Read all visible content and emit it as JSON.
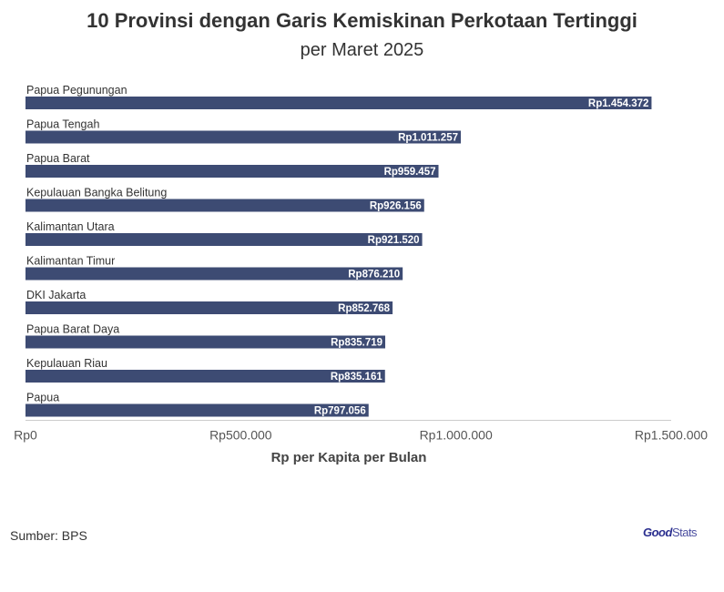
{
  "colors": {
    "bar": "#3d4b73",
    "label": "#ffffff",
    "text": "#333333",
    "axis": "#cccccc",
    "logo": "#2b2f8f"
  },
  "source": "Sumber: BPS",
  "logo": {
    "part1": "Good",
    "part2": "Stats"
  },
  "chart_data": {
    "type": "bar",
    "orientation": "horizontal",
    "title": "10 Provinsi dengan Garis Kemiskinan Perkotaan Tertinggi",
    "subtitle": "per Maret 2025",
    "xlabel": "Rp per Kapita per Bulan",
    "ylabel": "",
    "xlim": [
      0,
      1500000
    ],
    "xticks": [
      0,
      500000,
      1000000,
      1500000
    ],
    "xtick_labels": [
      "Rp0",
      "Rp500.000",
      "Rp1.000.000",
      "Rp1.500.000"
    ],
    "grid": false,
    "categories": [
      "Papua Pegunungan",
      "Papua Tengah",
      "Papua Barat",
      "Kepulauan Bangka Belitung",
      "Kalimantan Utara",
      "Kalimantan Timur",
      "DKI Jakarta",
      "Papua Barat Daya",
      "Kepulauan Riau",
      "Papua"
    ],
    "values": [
      1454372,
      1011257,
      959457,
      926156,
      921520,
      876210,
      852768,
      835719,
      835161,
      797056
    ],
    "data_labels": [
      "Rp1.454.372",
      "Rp1.011.257",
      "Rp959.457",
      "Rp926.156",
      "Rp921.520",
      "Rp876.210",
      "Rp852.768",
      "Rp835.719",
      "Rp835.161",
      "Rp797.056"
    ]
  }
}
